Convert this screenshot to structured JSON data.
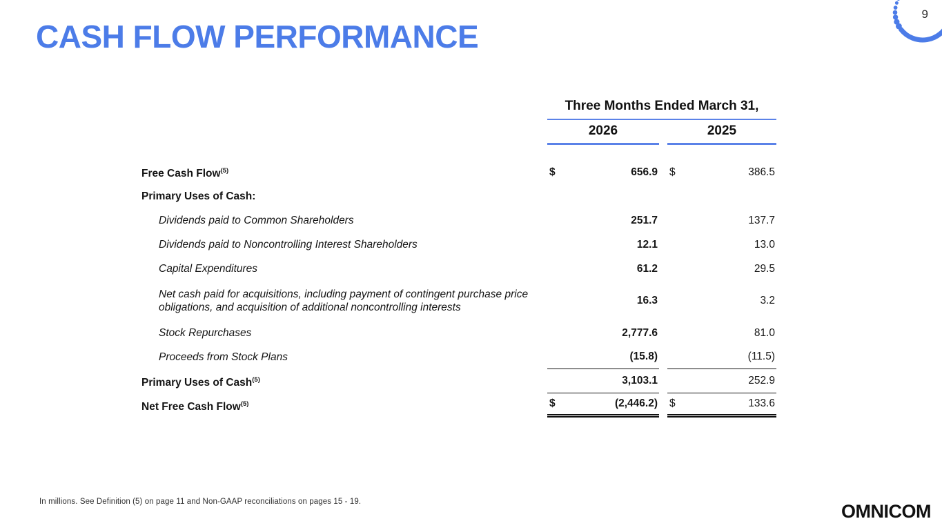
{
  "slide": {
    "title": "CASH FLOW PERFORMANCE",
    "page_number": "9",
    "footnote": "In millions. See Definition (5) on page 11 and Non-GAAP reconciliations on pages 15 - 19.",
    "logo_text": "OMNICOM"
  },
  "colors": {
    "accent_blue": "#4C7CE8",
    "rule_blue": "#5B82E8",
    "text_black": "#141414"
  },
  "table": {
    "currency_symbol": "$",
    "header": {
      "span_label": "Three Months Ended March 31,",
      "col_2026": "2026",
      "col_2025": "2025"
    },
    "rows": [
      {
        "label": "Free Cash Flow",
        "sup": "(5)",
        "style": "bold",
        "currency": true,
        "v2026": "656.9",
        "v2025": "386.5"
      },
      {
        "label": "Primary Uses of Cash:",
        "style": "bold",
        "v2026": "",
        "v2025": ""
      },
      {
        "label": "Dividends paid to Common Shareholders",
        "style": "italic-indent",
        "v2026": "251.7",
        "v2025": "137.7"
      },
      {
        "label": "Dividends paid to Noncontrolling Interest Shareholders",
        "style": "italic-indent",
        "v2026": "12.1",
        "v2025": "13.0"
      },
      {
        "label": "Capital Expenditures",
        "style": "italic-indent",
        "v2026": "61.2",
        "v2025": "29.5"
      },
      {
        "label": "Net cash paid for acquisitions, including payment of contingent purchase price obligations, and acquisition of additional noncontrolling interests",
        "style": "italic-indent",
        "tall": true,
        "v2026": "16.3",
        "v2025": "3.2"
      },
      {
        "label": "Stock Repurchases",
        "style": "italic-indent",
        "v2026": "2,777.6",
        "v2025": "81.0"
      },
      {
        "label": "Proceeds from Stock Plans",
        "style": "italic-indent",
        "v2026": "(15.8)",
        "v2025": "(11.5)",
        "rule_below": "single"
      },
      {
        "label": "Primary Uses of Cash",
        "sup": "(5)",
        "style": "bold",
        "v2026": "3,103.1",
        "v2025": "252.9",
        "rule_below": "single"
      },
      {
        "label": "Net Free Cash Flow",
        "sup": "(5)",
        "style": "bold",
        "currency": true,
        "v2026": "(2,446.2)",
        "v2025": "133.6",
        "rule_below": "double"
      }
    ]
  }
}
